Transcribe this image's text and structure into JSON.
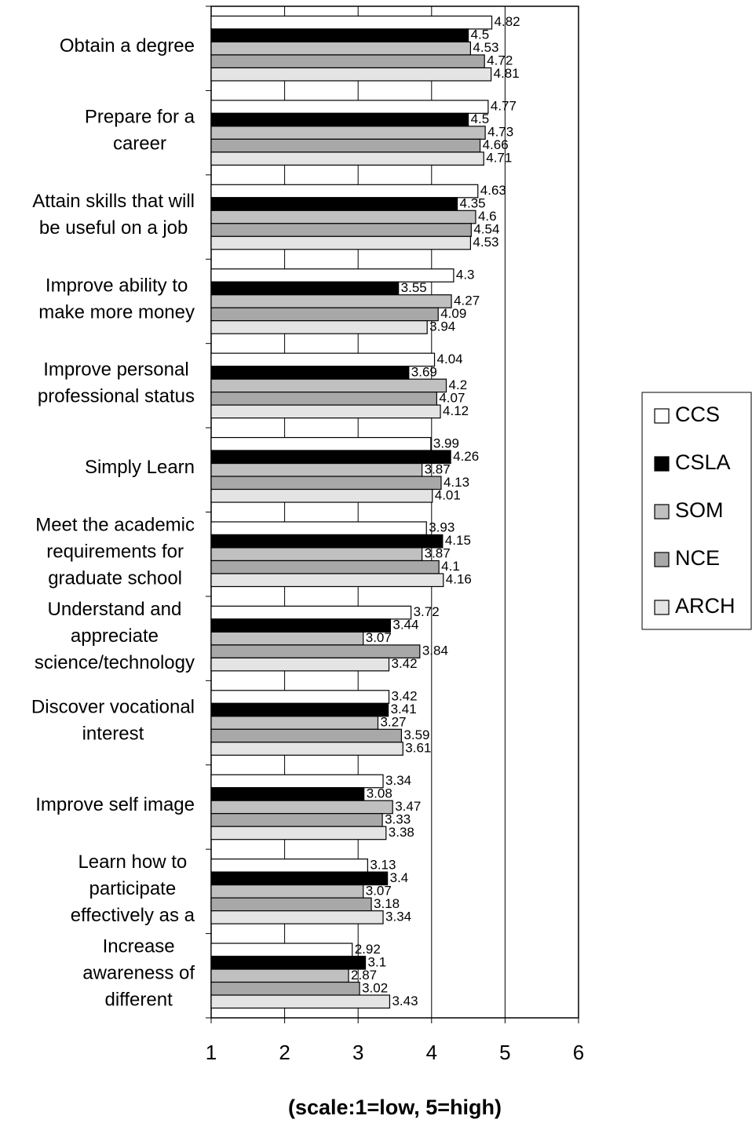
{
  "chart_data": {
    "type": "hbar",
    "xlabel": "(scale:1=low, 5=high)",
    "categories": [
      [
        "Obtain a degree"
      ],
      [
        "Prepare for a",
        "career"
      ],
      [
        "Attain skills that will",
        "be useful on a job"
      ],
      [
        "Improve ability to",
        "make more money"
      ],
      [
        "Improve personal",
        "professional status"
      ],
      [
        "Simply Learn"
      ],
      [
        "Meet the academic",
        "requirements for",
        "graduate school"
      ],
      [
        "Understand and",
        "appreciate",
        "science/technology"
      ],
      [
        "Discover vocational",
        "interest"
      ],
      [
        "Improve self image"
      ],
      [
        "Learn how to",
        "participate",
        "effectively as a"
      ],
      [
        "Increase",
        "awareness of",
        "different"
      ]
    ],
    "series": [
      {
        "name": "CCS",
        "color": "#ffffff",
        "values": [
          4.82,
          4.77,
          4.63,
          4.3,
          4.04,
          3.99,
          3.93,
          3.72,
          3.42,
          3.34,
          3.13,
          2.92
        ]
      },
      {
        "name": "CSLA",
        "color": "#000000",
        "values": [
          4.5,
          4.5,
          4.35,
          3.55,
          3.69,
          4.26,
          4.15,
          3.44,
          3.41,
          3.08,
          3.4,
          3.1
        ]
      },
      {
        "name": "SOM",
        "color": "#c0c0c0",
        "values": [
          4.53,
          4.73,
          4.6,
          4.27,
          4.2,
          3.87,
          3.87,
          3.07,
          3.27,
          3.47,
          3.07,
          2.87
        ]
      },
      {
        "name": "NCE",
        "color": "#a8a8a8",
        "values": [
          4.72,
          4.66,
          4.54,
          4.09,
          4.07,
          4.13,
          4.1,
          3.84,
          3.59,
          3.33,
          3.18,
          3.02
        ]
      },
      {
        "name": "ARCH",
        "color": "#e4e4e4",
        "values": [
          4.81,
          4.71,
          4.53,
          3.94,
          4.12,
          4.01,
          4.16,
          3.42,
          3.61,
          3.38,
          3.34,
          3.43
        ]
      }
    ],
    "xlim": [
      1,
      6
    ],
    "xticks": [
      1,
      2,
      3,
      4,
      5,
      6
    ],
    "grid": true,
    "legend": "right"
  }
}
